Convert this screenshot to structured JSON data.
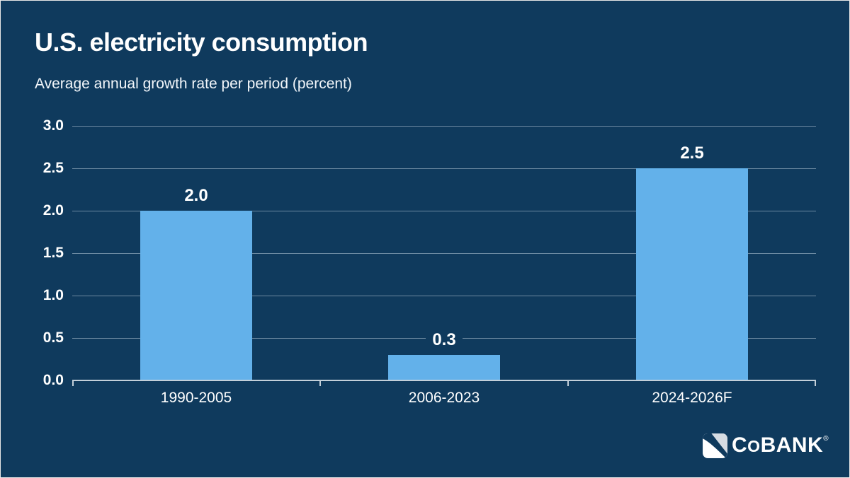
{
  "page": {
    "background_color": "#0f3a5d",
    "edge_color": "#e8e8e8"
  },
  "chart_data": {
    "type": "bar",
    "title": "U.S. electricity consumption",
    "subtitle": "Average annual growth rate per period (percent)",
    "categories": [
      "1990-2005",
      "2006-2023",
      "2024-2026F"
    ],
    "values": [
      2.0,
      0.3,
      2.5
    ],
    "value_labels": [
      "2.0",
      "0.3",
      "2.5"
    ],
    "yticks": [
      0,
      0.5,
      1,
      1.5,
      2,
      2.5,
      3
    ],
    "ytick_labels": [
      "0.0",
      "0.5",
      "1.0",
      "1.5",
      "2.0",
      "2.5",
      "3.0"
    ],
    "ylim": [
      0,
      3
    ],
    "xlabel": "",
    "ylabel": "",
    "grid": true,
    "legend": false,
    "colors": {
      "bar": "#63b1ea",
      "gridline": "#7d98ad",
      "axis": "#c3cfd9",
      "text": "#ffffff"
    }
  },
  "logo": {
    "brand": "CoBank",
    "text_c": "C",
    "text_o": "O",
    "text_bank": "BANK",
    "registered_mark": "®"
  }
}
